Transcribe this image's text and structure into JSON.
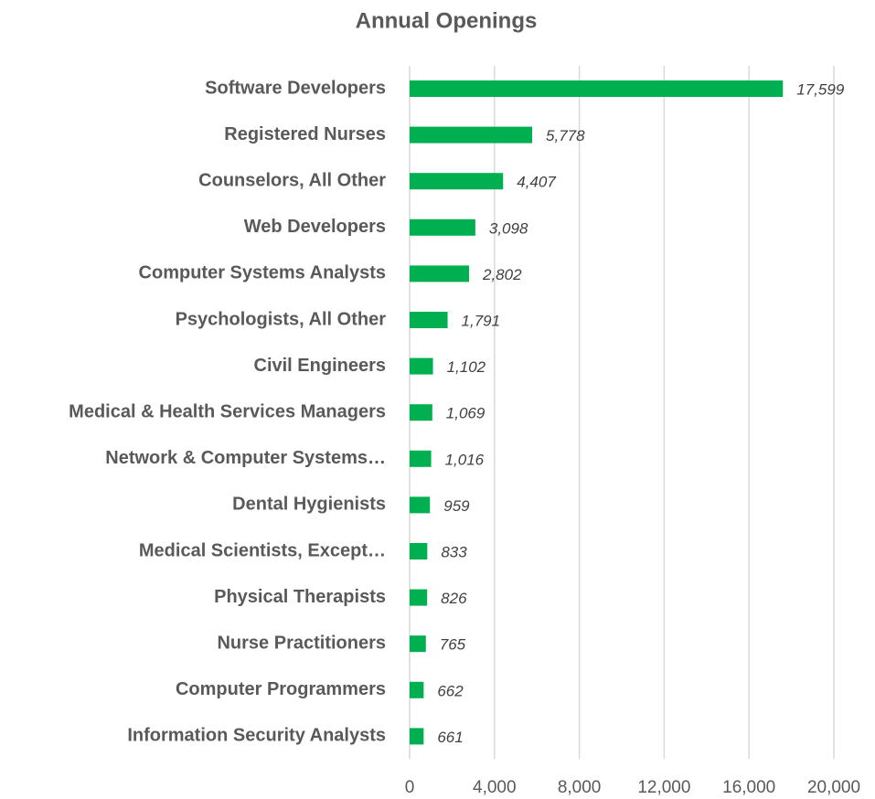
{
  "chart_data": {
    "type": "bar",
    "orientation": "horizontal",
    "title": "Annual Openings",
    "categories": [
      "Software Developers",
      "Registered Nurses",
      "Counselors, All Other",
      "Web Developers",
      "Computer Systems Analysts",
      "Psychologists, All Other",
      "Civil Engineers",
      "Medical & Health Services Managers",
      "Network & Computer Systems…",
      "Dental Hygienists",
      "Medical Scientists, Except…",
      "Physical Therapists",
      "Nurse Practitioners",
      "Computer Programmers",
      "Information Security Analysts"
    ],
    "values": [
      17599,
      5778,
      4407,
      3098,
      2802,
      1791,
      1102,
      1069,
      1016,
      959,
      833,
      826,
      765,
      662,
      661
    ],
    "value_labels": [
      "17,599",
      "5,778",
      "4,407",
      "3,098",
      "2,802",
      "1,791",
      "1,102",
      "1,069",
      "1,016",
      "959",
      "833",
      "826",
      "765",
      "662",
      "661"
    ],
    "color": "#00b050",
    "xlim": [
      0,
      20000
    ],
    "xticks": [
      0,
      {
        "value": 4000,
        "label": "4,000"
      },
      {
        "value": 8000,
        "label": "8,000"
      },
      {
        "value": 12000,
        "label": "12,000"
      },
      {
        "value": 16000,
        "label": "16,000"
      },
      {
        "value": 20000,
        "label": "20,000"
      }
    ],
    "grid": true
  }
}
